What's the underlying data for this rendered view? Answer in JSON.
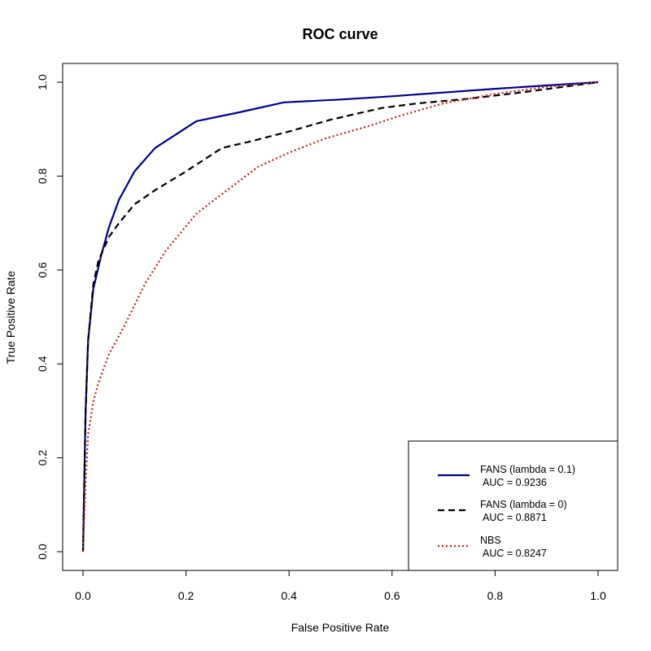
{
  "chart_data": {
    "type": "line",
    "title": "ROC curve",
    "xlabel": "False Positive Rate",
    "ylabel": "True Positive Rate",
    "xlim": [
      0,
      1
    ],
    "ylim": [
      0,
      1
    ],
    "x_ticks": [
      "0.0",
      "0.2",
      "0.4",
      "0.6",
      "0.8",
      "1.0"
    ],
    "y_ticks": [
      "0.0",
      "0.2",
      "0.4",
      "0.6",
      "0.8",
      "1.0"
    ],
    "grid": false,
    "legend_position": "bottom-right",
    "series": [
      {
        "name": "FANS (lambda = 0.1)",
        "auc_label": "AUC = 0.9236",
        "color": "#00008b",
        "line_style": "solid",
        "x": [
          0.0,
          0.005,
          0.01,
          0.02,
          0.035,
          0.05,
          0.07,
          0.1,
          0.14,
          0.22,
          0.3,
          0.39,
          0.5,
          0.6,
          0.7,
          0.8,
          0.9,
          1.0
        ],
        "y": [
          0.0,
          0.3,
          0.45,
          0.56,
          0.63,
          0.69,
          0.75,
          0.81,
          0.86,
          0.917,
          0.935,
          0.957,
          0.963,
          0.97,
          0.978,
          0.986,
          0.993,
          1.0
        ]
      },
      {
        "name": "FANS (lambda = 0)",
        "auc_label": "AUC = 0.8871",
        "color": "#000000",
        "line_style": "dashed",
        "x": [
          0.0,
          0.005,
          0.01,
          0.02,
          0.03,
          0.05,
          0.07,
          0.1,
          0.14,
          0.2,
          0.27,
          0.33,
          0.4,
          0.48,
          0.58,
          0.65,
          0.75,
          0.85,
          1.0
        ],
        "y": [
          0.0,
          0.3,
          0.45,
          0.57,
          0.62,
          0.67,
          0.7,
          0.74,
          0.77,
          0.81,
          0.86,
          0.875,
          0.895,
          0.92,
          0.945,
          0.955,
          0.965,
          0.978,
          1.0
        ]
      },
      {
        "name": "NBS",
        "auc_label": "AUC = 0.8247",
        "color": "#b22222",
        "line_style": "dotted",
        "x": [
          0.0,
          0.005,
          0.01,
          0.02,
          0.03,
          0.05,
          0.08,
          0.12,
          0.16,
          0.22,
          0.28,
          0.34,
          0.4,
          0.47,
          0.55,
          0.62,
          0.7,
          0.8,
          0.9,
          1.0
        ],
        "y": [
          0.0,
          0.15,
          0.25,
          0.32,
          0.36,
          0.42,
          0.48,
          0.57,
          0.64,
          0.72,
          0.77,
          0.82,
          0.85,
          0.88,
          0.905,
          0.93,
          0.955,
          0.975,
          0.99,
          1.0
        ]
      }
    ]
  }
}
